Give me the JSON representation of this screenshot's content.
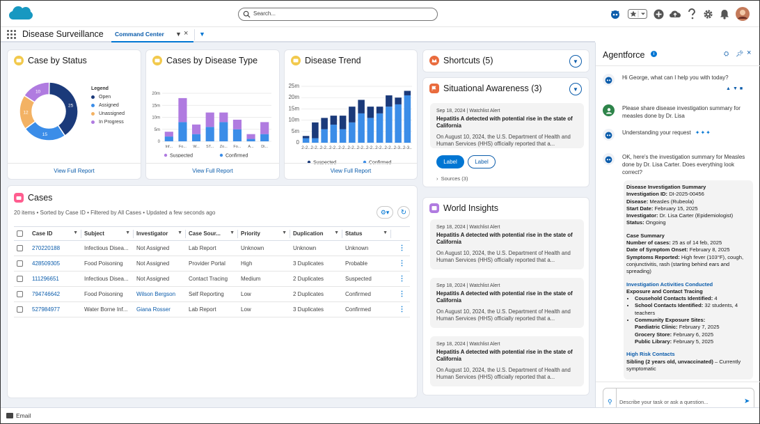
{
  "search": {
    "placeholder": "Search..."
  },
  "nav": {
    "app_name": "Disease Surveillance",
    "tab_label": "Command Center"
  },
  "case_by_status": {
    "title": "Case by Status",
    "legend_title": "Legend",
    "view_full_report": "View Full Report",
    "chart_data": {
      "type": "pie",
      "categories": [
        "Open",
        "Assigned",
        "Unassigned",
        "In Progress"
      ],
      "values": [
        25,
        15,
        12,
        10
      ],
      "colors": [
        "#1b3a7a",
        "#3b8de8",
        "#f3b264",
        "#b07be0"
      ]
    }
  },
  "cases_by_disease": {
    "title": "Cases by Disease Type",
    "view_full_report": "View Full Report",
    "chart_data": {
      "type": "bar",
      "categories": [
        "Inf...",
        "Fo...",
        "W...",
        "ST...",
        "Zo...",
        "Fo...",
        "A...",
        "Di..."
      ],
      "y_ticks": [
        "20m",
        "15m",
        "10m",
        "5m",
        "0"
      ],
      "ylim": [
        0,
        20
      ],
      "series": [
        {
          "name": "Suspected",
          "values": [
            2,
            10,
            4,
            6,
            4,
            4,
            2,
            5
          ],
          "color": "#b07be0"
        },
        {
          "name": "Confirmed",
          "values": [
            2,
            8,
            3,
            6,
            8,
            5,
            1,
            3
          ],
          "color": "#3b8de8"
        }
      ]
    }
  },
  "disease_trend": {
    "title": "Disease Trend",
    "view_full_report": "View Full Report",
    "chart_data": {
      "type": "bar",
      "categories": [
        "2-2..",
        "2-2..",
        "2-2..",
        "2-2..",
        "2-2..",
        "2-2..",
        "2-2..",
        "2-2..",
        "2-2..",
        "2-2..",
        "2-3..",
        "2-3.."
      ],
      "y_ticks": [
        "25m",
        "20m",
        "15m",
        "10m",
        "5m",
        "0"
      ],
      "ylim": [
        0,
        25
      ],
      "series": [
        {
          "name": "Suspected",
          "values": [
            1,
            7,
            5,
            4,
            6,
            7,
            6,
            5,
            3,
            5,
            3,
            2
          ],
          "color": "#1b3a7a"
        },
        {
          "name": "Confirmed",
          "values": [
            2,
            2,
            6,
            8,
            6,
            9,
            13,
            11,
            13,
            16,
            17,
            21
          ],
          "color": "#3b8de8"
        }
      ]
    }
  },
  "cases": {
    "title": "Cases",
    "meta": "20 items • Sorted by Case ID • Filtered by All Cases • Updated a few seconds ago",
    "columns": [
      "Case ID",
      "Subject",
      "Investigator",
      "Case Sour...",
      "Priority",
      "Duplication",
      "Status"
    ],
    "rows": [
      {
        "id": "270220188",
        "subject": "Infectious Disea...",
        "investigator": "Not Assigned",
        "source": "Lab Report",
        "priority": "Unknown",
        "duplication": "Unknown",
        "status": "Unknown"
      },
      {
        "id": "428509305",
        "subject": "Food Poisoning",
        "investigator": "Not Assigned",
        "source": "Provider Portal",
        "priority": "High",
        "duplication": "3 Duplicates",
        "status": "Probable"
      },
      {
        "id": "111296651",
        "subject": "Infectious Disea...",
        "investigator": "Not Assigned",
        "source": "Contact Tracing",
        "priority": "Medium",
        "duplication": "2 Duplicates",
        "status": "Suspected"
      },
      {
        "id": "794746642",
        "subject": "Food Poisoning",
        "investigator": "Wilson Bergson",
        "source": "Self Reporting",
        "priority": "Low",
        "duplication": "2 Duplicates",
        "status": "Confirmed"
      },
      {
        "id": "527984977",
        "subject": "Water Borne Inf...",
        "investigator": "Giana Rosser",
        "source": "Lab Report",
        "priority": "Low",
        "duplication": "3 Duplicates",
        "status": "Confirmed"
      }
    ]
  },
  "shortcuts": {
    "title": "Shortcuts (5)"
  },
  "situational": {
    "title": "Situational Awareness (3)",
    "alert": {
      "date": "Sep 18, 2024 | Watchlist Alert",
      "headline": "Hepatitis A detected with potential rise in the state of California",
      "body": "On August 10, 2024, the U.S. Department of Health and Human Services (HHS) officially reported that a..."
    },
    "label_primary": "Label",
    "label_secondary": "Label",
    "sources": "Sources (3)"
  },
  "world": {
    "title": "World Insights",
    "alerts": [
      {
        "date": "Sep 18, 2024 | Watchlist Alert",
        "headline": "Hepatitis A detected with potential rise in the state of California",
        "body": "On August 10, 2024, the U.S. Department of Health and Human Services (HHS) officially reported that a..."
      },
      {
        "date": "Sep 18, 2024 | Watchlist Alert",
        "headline": "Hepatitis A detected with potential rise in the state of California",
        "body": "On August 10, 2024, the U.S. Department of Health and Human Services (HHS) officially reported that a..."
      },
      {
        "date": "Sep 18, 2024 | Watchlist Alert",
        "headline": "Hepatitis A detected with potential rise in the state of California",
        "body": "On August 10, 2024, the U.S. Department of Health and Human Services (HHS) officially reported that a..."
      }
    ]
  },
  "agentforce": {
    "title": "Agentforce",
    "greeting": "Hi George, what can I help you with today?",
    "user_msg": "Please share disease investigation summary for measles done by Dr. Lisa",
    "understanding": "Understanding your request",
    "reply": "OK, here's the investigation summary for Measles done by Dr. Lisa Carter. Does everything look correct?",
    "summary": {
      "heading": "Disease Investigation Summary",
      "fields": [
        {
          "k": "Investigation ID:",
          "v": " DI-2025-00456"
        },
        {
          "k": "Disease:",
          "v": " Measles (Rubeola)"
        },
        {
          "k": "Start Date:",
          "v": " February 15, 2025"
        },
        {
          "k": "Investigator:",
          "v": " Dr. Lisa Carter (Epidemiologist)"
        },
        {
          "k": "Status:",
          "v": " Ongoing"
        }
      ],
      "case_summary_heading": "Case Summary",
      "case_fields": [
        {
          "k": "Number of cases:",
          "v": " 25 as of 14 feb, 2025"
        },
        {
          "k": "Date of Symptom Onset:",
          "v": " February 8, 2025"
        },
        {
          "k": "Symptoms Reported:",
          "v": " High fever (103°F), cough, conjunctivitis, rash (starting behind ears and spreading)"
        }
      ],
      "activities_heading": "Investigation Activities Conducted",
      "exposure_heading": "Exposure and Contact Tracing",
      "b1k": "Cousehold Contacts Identified:",
      "b1v": " 4",
      "b2k": "School Contacts Identified:",
      "b2v": " 32 students, 4 teachers",
      "b3k": "Community Exposure Sites:",
      "sites": [
        {
          "k": "Paediatric Clinic:",
          "v": " February 7, 2025"
        },
        {
          "k": "Grocery Store:",
          "v": " February 6, 2025"
        },
        {
          "k": "Public Library:",
          "v": " February 5, 2025"
        }
      ],
      "high_risk_heading": "High Risk Contacts",
      "hr_k": "Sibling (2 years old, unvaccinated)",
      "hr_v": " – Currently symptomatic"
    },
    "input_placeholder": "Describe your task or ask a question..."
  },
  "footer": {
    "label": "Email"
  }
}
